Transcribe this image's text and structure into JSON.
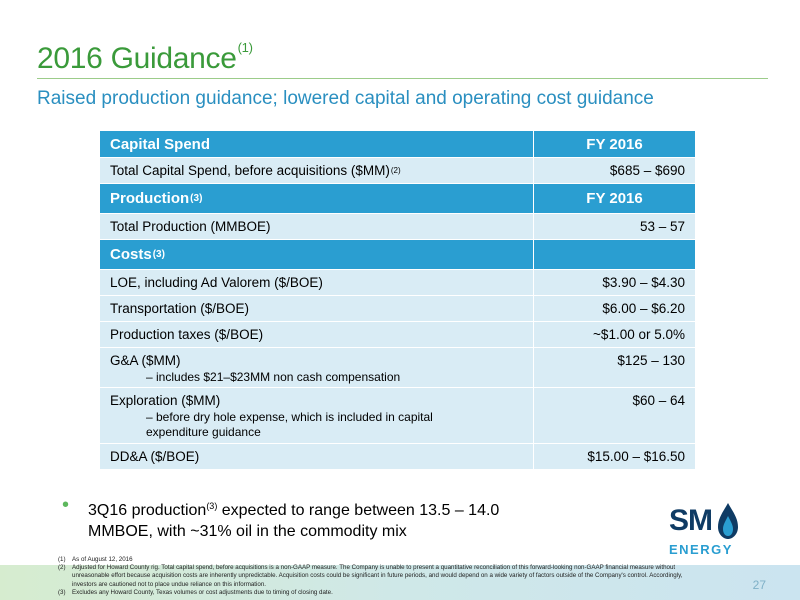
{
  "header": {
    "title": "2016 Guidance",
    "title_sup": "(1)",
    "subtitle": "Raised production guidance; lowered capital and operating cost guidance"
  },
  "table": {
    "capital": {
      "header": "Capital Spend",
      "col_header": "FY 2016",
      "rows": [
        {
          "label": "Total Capital Spend, before acquisitions ($MM)",
          "sup": "(2)",
          "value": "$685 – $690"
        }
      ]
    },
    "production": {
      "header": "Production",
      "header_sup": "(3)",
      "col_header": "FY 2016",
      "rows": [
        {
          "label": "Total Production (MMBOE)",
          "value": "53 – 57"
        }
      ]
    },
    "costs": {
      "header": "Costs",
      "header_sup": "(3)",
      "rows": [
        {
          "label": "LOE, including Ad Valorem ($/BOE)",
          "value": "$3.90 – $4.30"
        },
        {
          "label": "Transportation ($/BOE)",
          "value": "$6.00 – $6.20"
        },
        {
          "label": "Production taxes ($/BOE)",
          "value": "~$1.00 or 5.0%"
        },
        {
          "label": "G&A ($MM)",
          "note": "– includes $21–$23MM non cash compensation",
          "value": "$125 – 130"
        },
        {
          "label": "Exploration ($MM)",
          "note": "– before dry hole expense, which is included in capital expenditure guidance",
          "value": "$60 – 64"
        },
        {
          "label": "DD&A ($/BOE)",
          "value": "$15.00 – $16.50"
        }
      ]
    }
  },
  "bullet": {
    "text_a": "3Q16 production",
    "sup": "(3)",
    "text_b": " expected to range between 13.5 – 14.0 MMBOE, with ~31% oil in the commodity mix"
  },
  "logo": {
    "sm": "SM",
    "energy": "ENERGY"
  },
  "footnotes": [
    {
      "n": "(1)",
      "text": "As of August 12, 2016"
    },
    {
      "n": "(2)",
      "text": "Adjusted for Howard County rig. Total capital spend, before acquisitions is a non-GAAP measure.  The Company is unable to present a quantitative reconciliation of this forward-looking non-GAAP financial measure without unreasonable effort because acquisition costs are inherently unpredictable. Acquisition costs could be significant in future periods, and would depend on a wide variety of factors outside of the Company's control.  Accordingly, investors are cautioned not to place undue reliance on this information."
    },
    {
      "n": "(3)",
      "text": "Excludes any Howard County, Texas volumes or cost adjustments due to timing of closing date."
    }
  ],
  "page_number": "27",
  "colors": {
    "title_green": "#3a9a3a",
    "subtitle_blue": "#2a8fc0",
    "header_blue": "#2a9ed1",
    "row_fill": "#d9ecf5"
  }
}
